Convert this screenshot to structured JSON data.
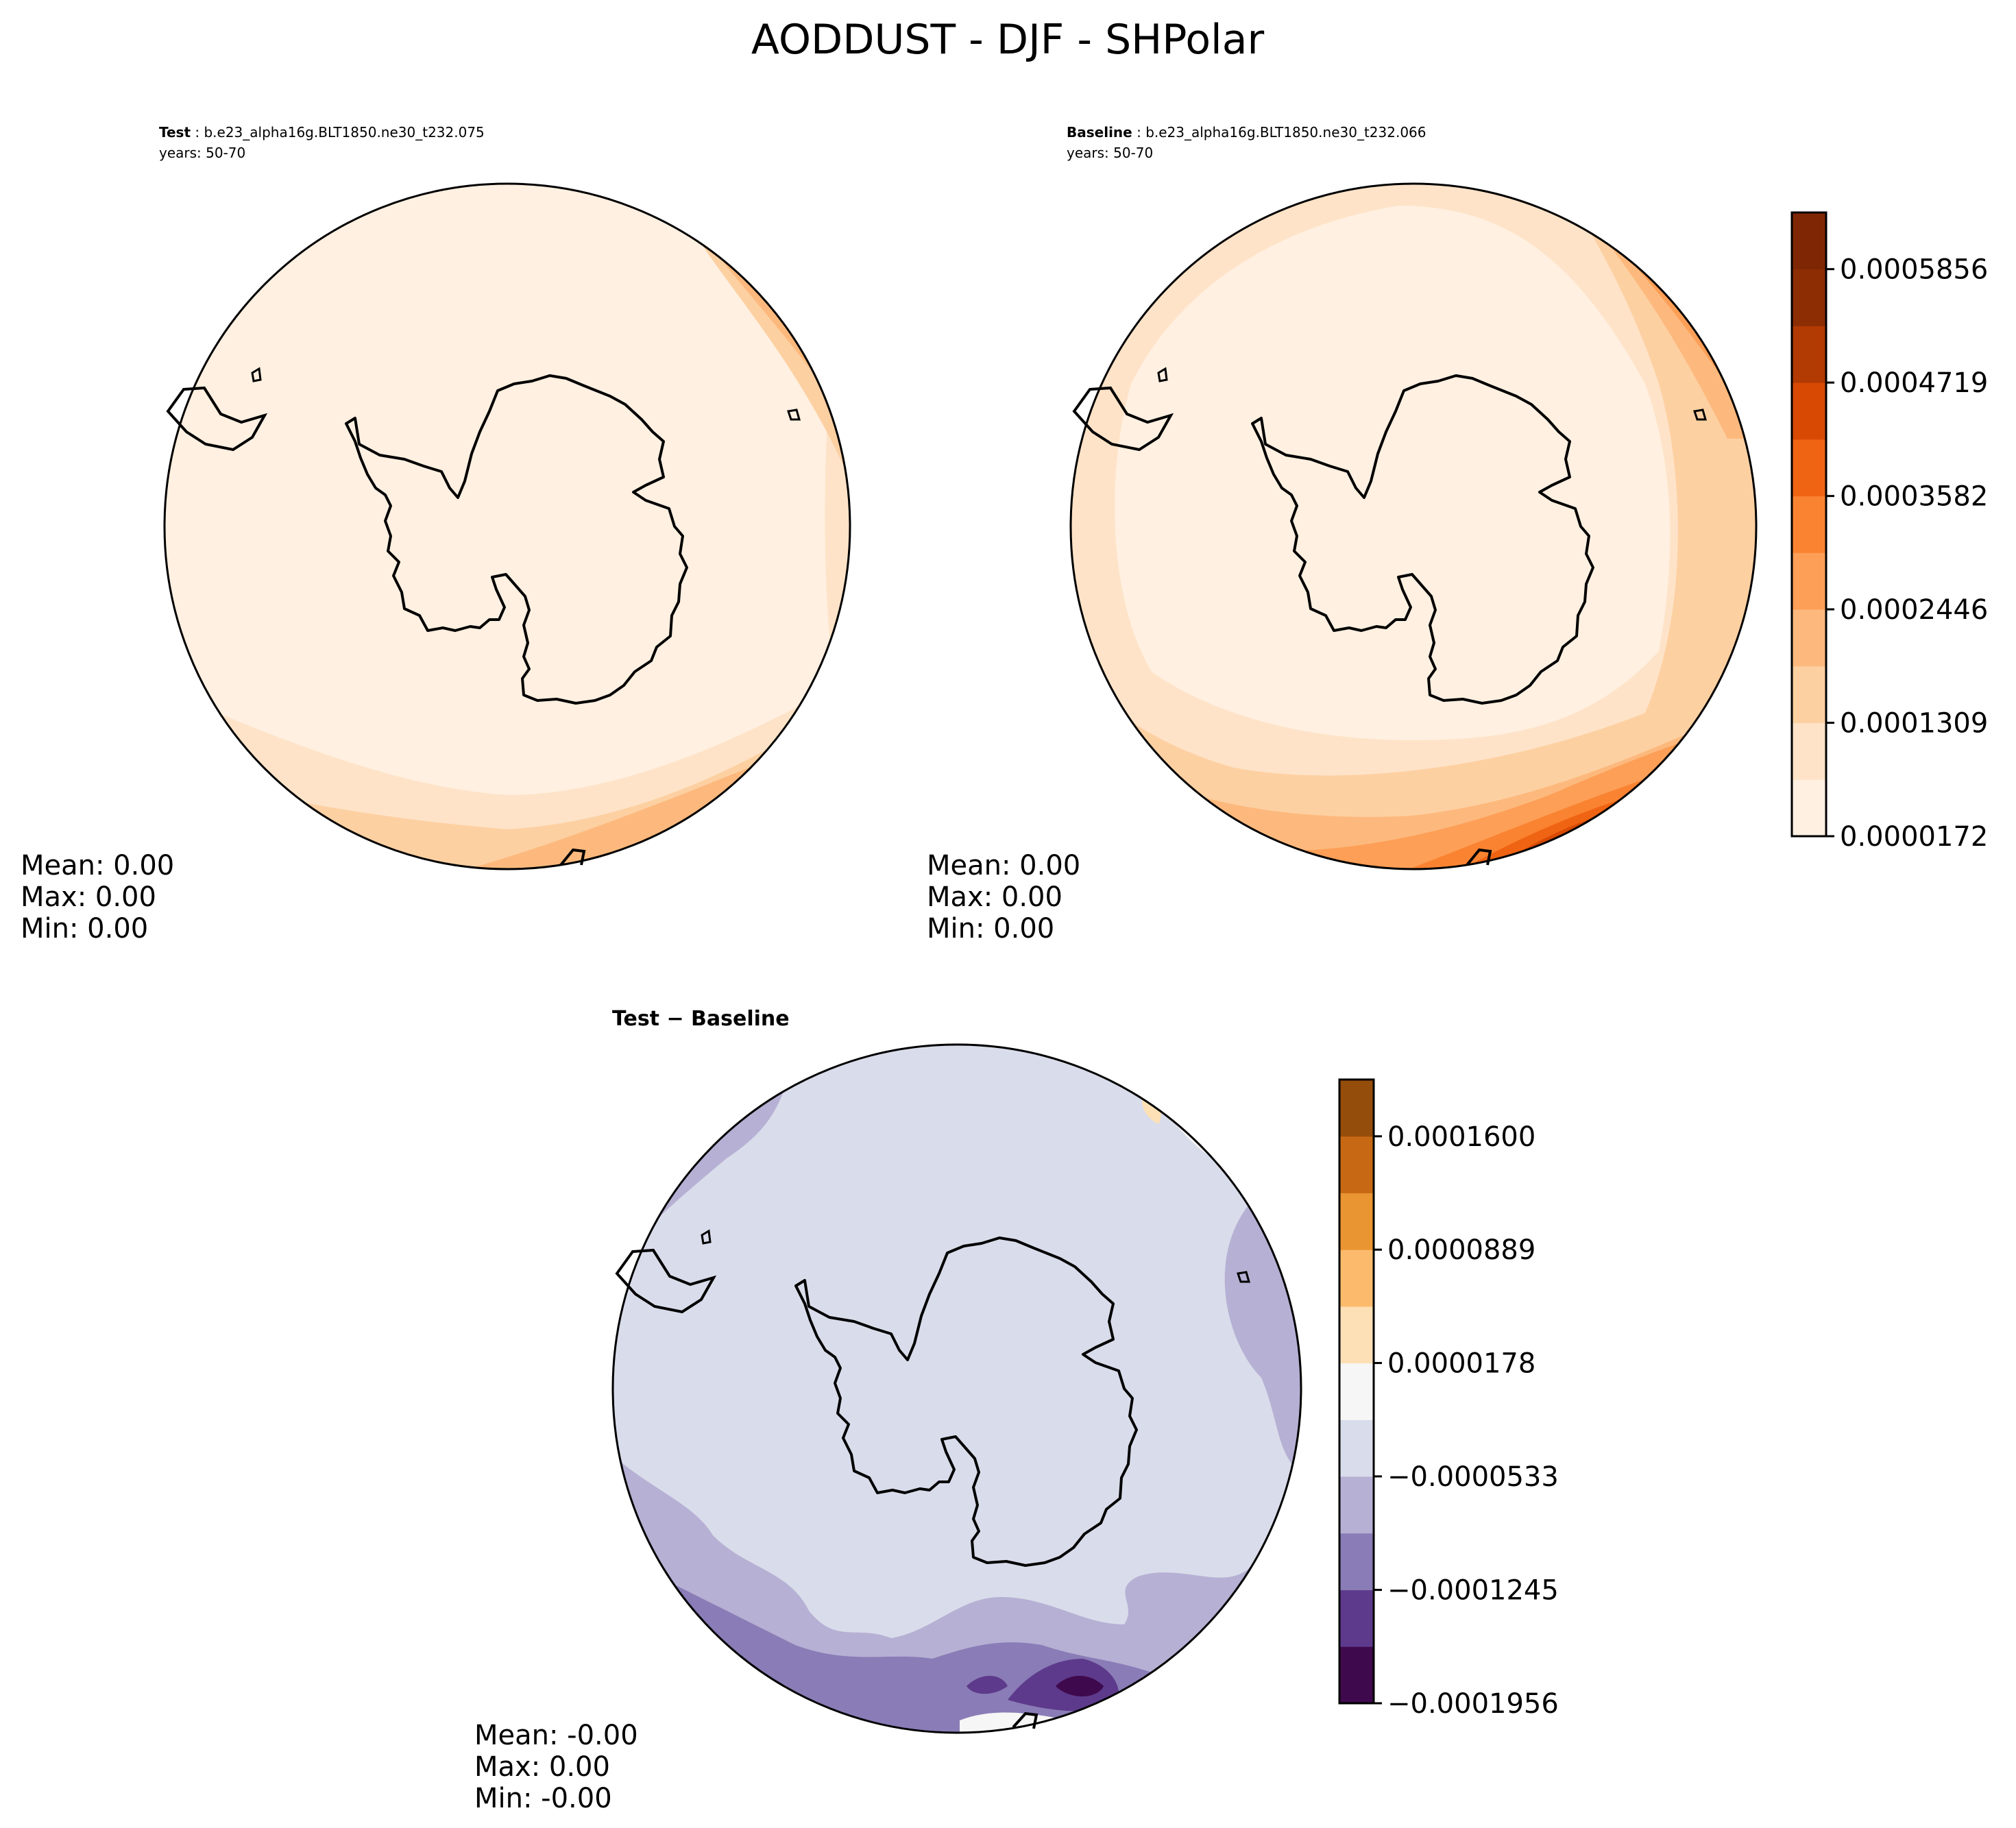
{
  "figure": {
    "title": "AODDUST - DJF - SHPolar"
  },
  "panels": [
    {
      "id": "test",
      "label_bold": "Test",
      "label_rest": " : b.e23_alpha16g.BLT1850.ne30_t232.075",
      "years": "years: 50-70",
      "stats": [
        "Mean:  0.00",
        "Max:  0.00",
        "Min:  0.00"
      ]
    },
    {
      "id": "baseline",
      "label_bold": "Baseline",
      "label_rest": " : b.e23_alpha16g.BLT1850.ne30_t232.066",
      "years": "years: 50-70",
      "stats": [
        "Mean:  0.00",
        "Max:  0.00",
        "Min:  0.00"
      ]
    },
    {
      "id": "diff",
      "label_bold": "Test − Baseline",
      "stats": [
        "Mean: -0.00",
        "Max:  0.00",
        "Min: -0.00"
      ]
    }
  ],
  "chart_data": [
    {
      "type": "heatmap",
      "panel": "test",
      "projection": "south-polar-stereographic",
      "colormap": "Oranges",
      "levels": [
        1.72e-05,
        7.4e-05,
        0.0001309,
        0.0001877,
        0.0002446,
        0.0003014,
        0.0003582,
        0.0004151,
        0.0004719,
        0.0005288,
        0.0005856,
        0.0006424
      ],
      "fills": [
        "#fff0e1",
        "#fee3c8",
        "#fdd0a2",
        "#fdb97d",
        "#fd9f57",
        "#fa8331",
        "#ef6412",
        "#d84a04",
        "#b23a03",
        "#8c2d04",
        "#7f2704"
      ]
    },
    {
      "type": "heatmap",
      "panel": "baseline",
      "projection": "south-polar-stereographic",
      "colormap": "Oranges",
      "levels": [
        1.72e-05,
        7.4e-05,
        0.0001309,
        0.0001877,
        0.0002446,
        0.0003014,
        0.0003582,
        0.0004151,
        0.0004719,
        0.0005288,
        0.0005856,
        0.0006424
      ],
      "fills": [
        "#fff0e1",
        "#fee3c8",
        "#fdd0a2",
        "#fdb97d",
        "#fd9f57",
        "#fa8331",
        "#ef6412",
        "#d84a04",
        "#b23a03",
        "#8c2d04",
        "#7f2704"
      ],
      "colorbar": {
        "ticks": [
          1.72e-05,
          0.0001309,
          0.0002446,
          0.0003582,
          0.0004719,
          0.0005856
        ],
        "tick_labels": [
          "0.0000172",
          "0.0001309",
          "0.0002446",
          "0.0003582",
          "0.0004719",
          "0.0005856"
        ]
      }
    },
    {
      "type": "heatmap",
      "panel": "diff",
      "projection": "south-polar-stereographic",
      "colormap": "PuOr_r",
      "levels": [
        -0.0001956,
        -0.00016,
        -0.0001245,
        -8.89e-05,
        -5.33e-05,
        -1.78e-05,
        1.78e-05,
        5.33e-05,
        8.89e-05,
        0.0001245,
        0.00016,
        0.0001956
      ],
      "fills": [
        "#3f0a4d",
        "#5d3a8b",
        "#8a7cb6",
        "#b6b0d4",
        "#d9dcea",
        "#f6f6f6",
        "#fde0b5",
        "#fcbb6c",
        "#e99532",
        "#c76914",
        "#954d0b"
      ],
      "colorbar": {
        "ticks": [
          -0.0001956,
          -0.0001245,
          -5.33e-05,
          1.78e-05,
          8.89e-05,
          0.00016
        ],
        "tick_labels": [
          "−0.0001956",
          "−0.0001245",
          "−0.0000533",
          "0.0000178",
          "0.0000889",
          "0.0001600"
        ]
      }
    }
  ]
}
